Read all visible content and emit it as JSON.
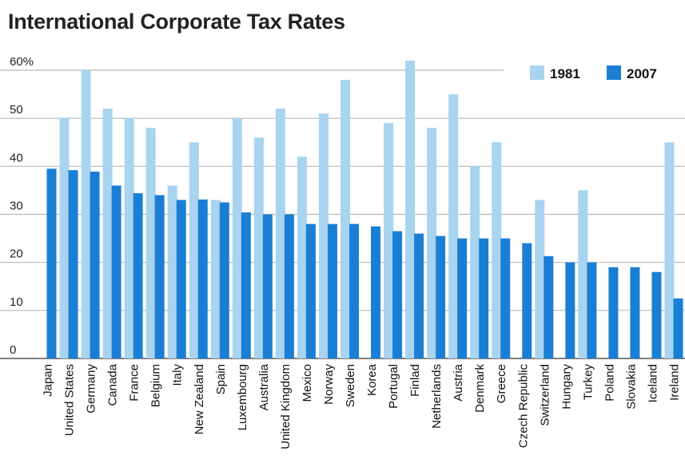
{
  "chart_data": {
    "type": "bar",
    "title": "International Corporate Tax Rates",
    "xlabel": "",
    "ylabel": "",
    "ylim": [
      0,
      60
    ],
    "y_ticks": [
      "0",
      "10",
      "20",
      "30",
      "40",
      "50",
      "60%"
    ],
    "grid": true,
    "legend_position": "top-right",
    "categories": [
      "Japan",
      "United States",
      "Germany",
      "Canada",
      "France",
      "Belgium",
      "Italy",
      "New Zealand",
      "Spain",
      "Luxembourg",
      "Australia",
      "United Kingdom",
      "Mexico",
      "Norway",
      "Sweden",
      "Korea",
      "Portugal",
      "Finlad",
      "Netherlands",
      "Austria",
      "Denmark",
      "Greece",
      "Czech Republic",
      "Switzerland",
      "Hungary",
      "Turkey",
      "Poland",
      "Slovakia",
      "Iceland",
      "Ireland"
    ],
    "series": [
      {
        "name": "1981",
        "color": "#a8d4f0",
        "values": [
          null,
          50,
          60,
          52,
          50,
          48,
          36,
          45,
          33,
          50,
          46,
          52,
          42,
          51,
          58,
          null,
          49,
          62,
          48,
          55,
          40,
          45,
          null,
          33,
          null,
          35,
          null,
          null,
          null,
          45
        ]
      },
      {
        "name": "2007",
        "color": "#1a7fd4",
        "values": [
          39.5,
          39.2,
          38.9,
          36,
          34.4,
          34,
          33,
          33.1,
          32.5,
          30.4,
          30,
          30,
          28,
          28,
          28,
          27.5,
          26.5,
          26,
          25.5,
          25,
          25,
          25,
          24,
          21.3,
          20,
          20,
          19,
          19,
          18,
          12.5
        ]
      }
    ]
  }
}
